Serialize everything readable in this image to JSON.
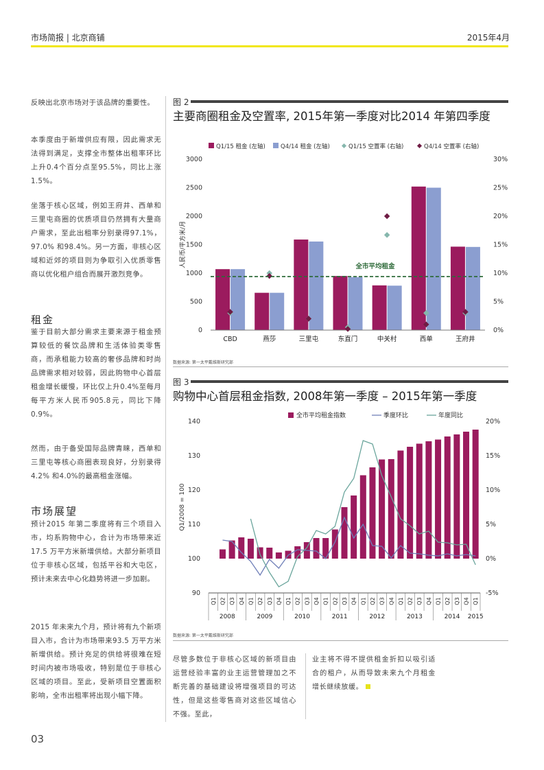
{
  "header": {
    "left": "市场简报 | 北京商铺",
    "right": "2015年4月"
  },
  "left_column": {
    "p1": "反映出北京市场对于该品牌的重要性。",
    "p2": "本季度由于新增供应有限，因此需求无法得到满足，支撑全市整体出租率环比上升0.4个百分点至95.5%，同比上涨1.5%。",
    "p3": "坐落于核心区域，例如王府井、西单和三里屯商圈的优质项目仍然拥有大量商户需求，至此出租率分别录得97.1%，97.0% 和98.4%。另一方面，非核心区域和近郊的项目则为争取引入优质零售商以优化租户组合而展开激烈竞争。",
    "h_rent": "租金",
    "p4": "鉴于目前大部分需求主要来源于租金预算较低的餐饮品牌和生活体验类零售商，而承租能力较高的奢侈品牌和时尚品牌需求相对较弱，因此购物中心首层租金增长缓慢，环比仅上升0.4%至每月每平方米人民币905.8元，同比下降0.9%。",
    "p5": "然而，由于备受国际品牌青睐，西单和三里屯等核心商圈表现良好，分别录得4.2% 和4.0%的最高租金涨幅。",
    "h_outlook": "市场展望",
    "p6": "预计2015 年第二季度将有三个项目入市，均系购物中心，合计为市场带来近17.5 万平方米新增供给。大部分新项目位于非核心区域，包括平谷和大屯区， 预计未来去中心化趋势将进一步加剧。",
    "p7": "2015 年未来九个月，预计将有九个新项目入市，合计为市场带来93.5 万平方米新增供给。预计充足的供给将很难在短时间内被市场吸收，特别是位于非核心区域的项目。至此，受新项目空置面积影响，全市出租率将出现小幅下降。"
  },
  "figure2": {
    "label": "图 2",
    "title": "主要商圈租金及空置率, 2015年第一季度对比2014 年第四季度",
    "source": "数据来源: 第一太平戴维斯研究部"
  },
  "figure3": {
    "label": "图 3",
    "title": "购物中心首层租金指数, 2008年第一季度 – 2015年第一季度",
    "source": "数据来源: 第一太平戴维斯研究部"
  },
  "bottom": {
    "col1": "尽管多数位于非核心区域的新项目由运营经验丰富的业主运营管理加之不断完善的基础建设将增强项目的可达性，但是这些零售商对这些区域信心不强。至此，",
    "col2": "业主将不得不提供租金折扣以吸引适合的租户，从而导致未来九个月租金增长继续放缓。"
  },
  "page_number": "03",
  "colors": {
    "accent_yellow": "#f1e70f",
    "plum": "#9b1b5e",
    "blue": "#8b9ed0",
    "teal": "#6aa59c",
    "green_dash": "#2f6b3a",
    "diamond_q1": "#86b7ad",
    "diamond_q4": "#6f1c44",
    "end_square": "#e6e31b"
  },
  "chart_data": [
    {
      "type": "bar",
      "categories": [
        "CBD",
        "燕莎",
        "三里屯",
        "东直门",
        "中关村",
        "西单",
        "王府井"
      ],
      "series": [
        {
          "name": "Q1/15 租金 (左轴)",
          "axis": "left",
          "values": [
            1070,
            655,
            1590,
            950,
            785,
            2520,
            1465
          ]
        },
        {
          "name": "Q4/14 租金 (左轴)",
          "axis": "left",
          "values": [
            1070,
            655,
            1555,
            930,
            780,
            2500,
            1460
          ]
        },
        {
          "name": "Q1/15 空置率 (右轴)",
          "axis": "right",
          "kind": "marker",
          "values": [
            3.0,
            10.0,
            2.0,
            0.5,
            16.7,
            3.0,
            3.0
          ]
        },
        {
          "name": "Q4/14 空置率 (右轴)",
          "axis": "right",
          "kind": "marker",
          "values": [
            3.2,
            9.5,
            2.0,
            0.2,
            20.0,
            1.0,
            3.2
          ]
        }
      ],
      "reference_line": {
        "label": "全市平均租金",
        "value": 940
      },
      "ylabel": "人民币/平方米/月",
      "ylim": [
        0,
        3000
      ],
      "yticks": [
        "3000",
        "2500",
        "2000",
        "1500",
        "1000",
        "500",
        "0"
      ],
      "y2lim": [
        0,
        30
      ],
      "y2ticks": [
        "30%",
        "25%",
        "20%",
        "15%",
        "10%",
        "5%",
        "0%"
      ],
      "legend": "top"
    },
    {
      "type": "bar",
      "quarters": [
        "Q1",
        "Q2",
        "Q3",
        "Q4",
        "Q1",
        "Q2",
        "Q3",
        "Q4",
        "Q1",
        "Q2",
        "Q3",
        "Q4",
        "Q1",
        "Q2",
        "Q3",
        "Q4",
        "Q1",
        "Q2",
        "Q3",
        "Q4",
        "Q1",
        "Q2",
        "Q3",
        "Q4",
        "Q1",
        "Q2",
        "Q3",
        "Q4",
        "Q1"
      ],
      "years": [
        "2008",
        "2009",
        "2010",
        "2011",
        "2012",
        "2013",
        "2014",
        "2015"
      ],
      "series": [
        {
          "name": "全市平均租金指数",
          "axis": "left",
          "kind": "bar",
          "values": [
            100,
            102.7,
            105.3,
            106.2,
            105.8,
            103.3,
            103.2,
            101.8,
            102.3,
            103.6,
            104.8,
            106.0,
            106.0,
            108.5,
            115.0,
            118.4,
            124.3,
            126.6,
            128.9,
            129.0,
            131.5,
            132.6,
            133.5,
            134.2,
            134.7,
            135.6,
            136.2,
            137.0,
            137.6
          ]
        },
        {
          "name": "季度环比",
          "axis": "right",
          "kind": "line",
          "values": [
            null,
            2.7,
            2.5,
            0.9,
            -0.4,
            -2.4,
            -0.1,
            -1.4,
            0.5,
            1.3,
            1.2,
            1.1,
            0.0,
            2.4,
            6.0,
            3.0,
            5.0,
            1.9,
            1.8,
            0.1,
            1.9,
            0.8,
            0.7,
            0.5,
            0.4,
            0.7,
            0.4,
            0.6,
            0.4
          ]
        },
        {
          "name": "年度同比",
          "axis": "right",
          "kind": "line",
          "values": [
            null,
            null,
            null,
            null,
            5.8,
            0.6,
            -2.0,
            -4.1,
            -3.3,
            0.3,
            1.6,
            4.1,
            3.6,
            4.7,
            9.7,
            11.7,
            17.2,
            16.7,
            12.1,
            9.0,
            5.8,
            4.8,
            3.6,
            4.0,
            2.4,
            2.3,
            2.0,
            2.1,
            -0.9
          ]
        }
      ],
      "ylabel": "Q1/2008 = 100",
      "ylim": [
        90,
        140
      ],
      "yticks": [
        "140",
        "130",
        "120",
        "110",
        "100",
        "90"
      ],
      "y2lim": [
        -5,
        20
      ],
      "y2ticks": [
        "20%",
        "15%",
        "10%",
        "5%",
        "0%",
        "-5%"
      ],
      "legend": "top"
    }
  ]
}
